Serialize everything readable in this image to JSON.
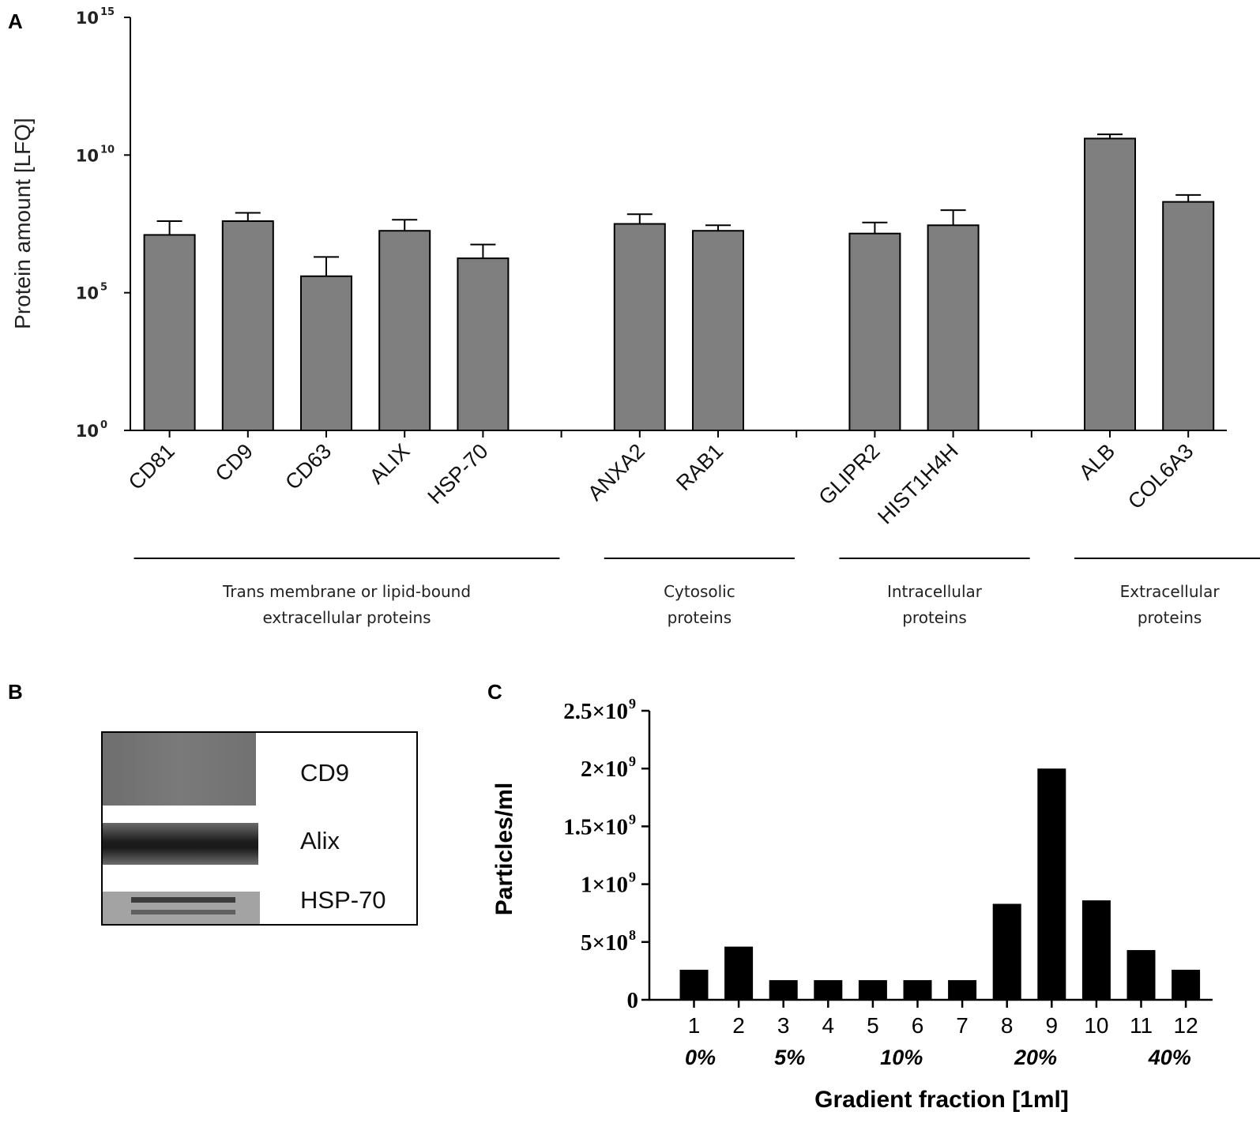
{
  "panels": {
    "a": "A",
    "b": "B",
    "c": "C"
  },
  "chart_data": [
    {
      "id": "A",
      "type": "bar",
      "scale": "log10",
      "ylabel": "Protein amount [LFQ]",
      "ytick_base": "10",
      "yticks_exp": [
        "0",
        "5",
        "10",
        "15"
      ],
      "ylim": [
        1,
        1000000000000000.0
      ],
      "categories": [
        "CD81",
        "CD9",
        "CD63",
        "ALIX",
        "HSP-70",
        "ANXA2",
        "RAB1",
        "GLIPR2",
        "HIST1H4H",
        "ALB",
        "COL6A3"
      ],
      "values_log10": [
        7.1,
        7.6,
        5.6,
        7.25,
        6.25,
        7.5,
        7.25,
        7.15,
        7.45,
        10.6,
        8.3
      ],
      "error_log10": [
        0.5,
        0.3,
        0.7,
        0.4,
        0.5,
        0.35,
        0.2,
        0.4,
        0.55,
        0.15,
        0.25
      ],
      "groups": [
        {
          "lines": [
            "Trans membrane or lipid-bound",
            "extracellular proteins"
          ],
          "members": [
            "CD81",
            "CD9",
            "CD63",
            "ALIX",
            "HSP-70"
          ]
        },
        {
          "lines": [
            "Cytosolic",
            "proteins"
          ],
          "members": [
            "ANXA2",
            "RAB1"
          ]
        },
        {
          "lines": [
            "Intracellular",
            "proteins"
          ],
          "members": [
            "GLIPR2",
            "HIST1H4H"
          ]
        },
        {
          "lines": [
            "Extracellular",
            "proteins"
          ],
          "members": [
            "ALB",
            "COL6A3"
          ]
        }
      ]
    },
    {
      "id": "C",
      "type": "bar",
      "xlabel": "Gradient fraction [1ml]",
      "ylabel": "Particles/ml",
      "ylim": [
        0,
        2500000000
      ],
      "yticks": [
        {
          "value": 0,
          "label": "0",
          "exp": ""
        },
        {
          "value": 500000000,
          "label": "5×10",
          "exp": "8"
        },
        {
          "value": 1000000000,
          "label": "1×10",
          "exp": "9"
        },
        {
          "value": 1500000000,
          "label": "1.5×10",
          "exp": "9"
        },
        {
          "value": 2000000000,
          "label": "2×10",
          "exp": "9"
        },
        {
          "value": 2500000000,
          "label": "2.5×10",
          "exp": "9"
        }
      ],
      "categories": [
        "1",
        "2",
        "3",
        "4",
        "5",
        "6",
        "7",
        "8",
        "9",
        "10",
        "11",
        "12"
      ],
      "values": [
        260000000,
        460000000,
        170000000,
        170000000,
        170000000,
        170000000,
        170000000,
        830000000,
        2000000000,
        860000000,
        430000000,
        260000000
      ],
      "gradient_labels": [
        {
          "text": "0%",
          "at": "1"
        },
        {
          "text": "5%",
          "at": "3"
        },
        {
          "text": "10%",
          "at": "5.5"
        },
        {
          "text": "20%",
          "at": "8.5"
        },
        {
          "text": "40%",
          "at": "11.5"
        }
      ]
    }
  ],
  "blot": {
    "labels": [
      "CD9",
      "Alix",
      "HSP-70"
    ]
  }
}
